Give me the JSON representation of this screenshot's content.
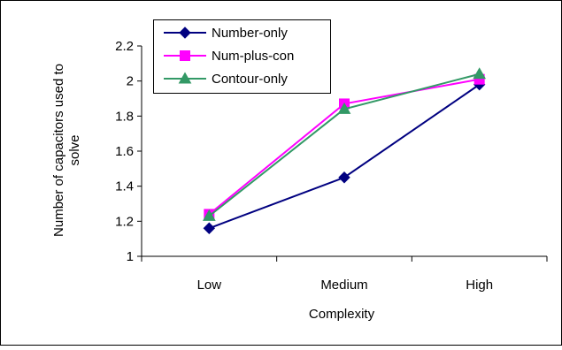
{
  "chart_data": {
    "type": "line",
    "title": "",
    "xlabel": "Complexity",
    "ylabel_lines": [
      "Number of capacitors used to",
      "solve"
    ],
    "categories": [
      "Low",
      "Medium",
      "High"
    ],
    "ylim": [
      1,
      2.2
    ],
    "yticks": [
      "1",
      "1.2",
      "1.4",
      "1.6",
      "1.8",
      "2",
      "2.2"
    ],
    "ytick_values": [
      1,
      1.2,
      1.4,
      1.6,
      1.8,
      2,
      2.2
    ],
    "grid": false,
    "legend_position": "top-left",
    "series": [
      {
        "name": "Number-only",
        "values": [
          1.16,
          1.45,
          1.98
        ],
        "color": "#000080",
        "marker": "diamond"
      },
      {
        "name": "Num-plus-con",
        "values": [
          1.24,
          1.87,
          2.01
        ],
        "color": "#ff00ff",
        "marker": "square"
      },
      {
        "name": "Contour-only",
        "values": [
          1.23,
          1.84,
          2.04
        ],
        "color": "#339966",
        "marker": "triangle"
      }
    ]
  }
}
